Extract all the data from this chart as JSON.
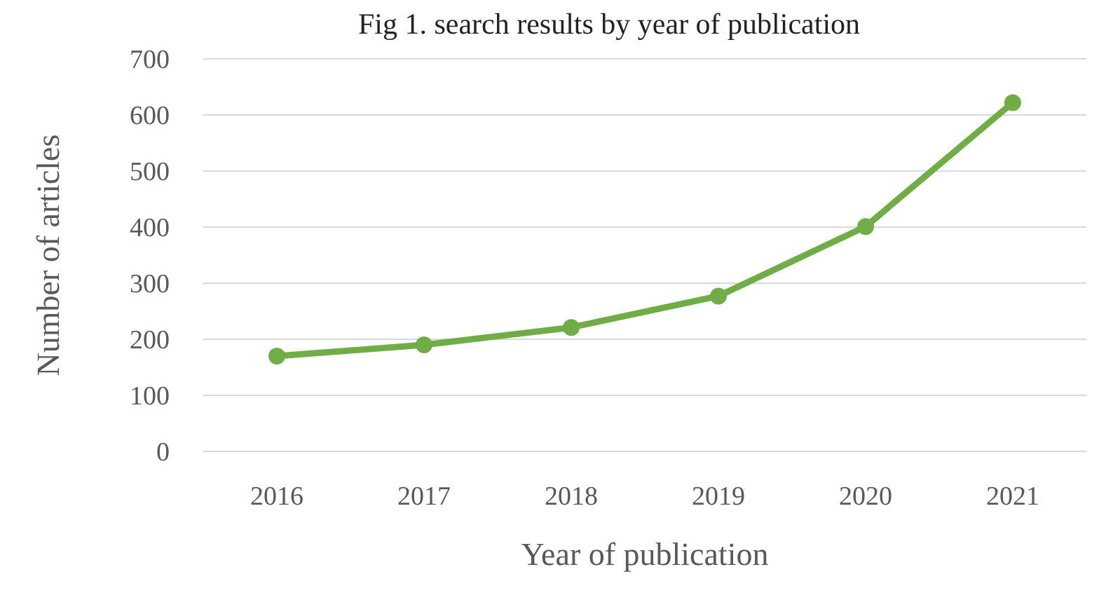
{
  "chart_data": {
    "type": "line",
    "title": "Fig 1. search results by year of publication",
    "xlabel": "Year of publication",
    "ylabel": "Number of articles",
    "categories": [
      "2016",
      "2017",
      "2018",
      "2019",
      "2020",
      "2021"
    ],
    "series": [
      {
        "color": "#70ad47",
        "values": [
          170,
          190,
          221,
          277,
          401,
          622
        ]
      }
    ],
    "ylim": [
      0,
      700
    ],
    "yticks": [
      0,
      100,
      200,
      300,
      400,
      500,
      600,
      700
    ],
    "grid": "y",
    "marker": "circle",
    "line_style": "solid"
  }
}
